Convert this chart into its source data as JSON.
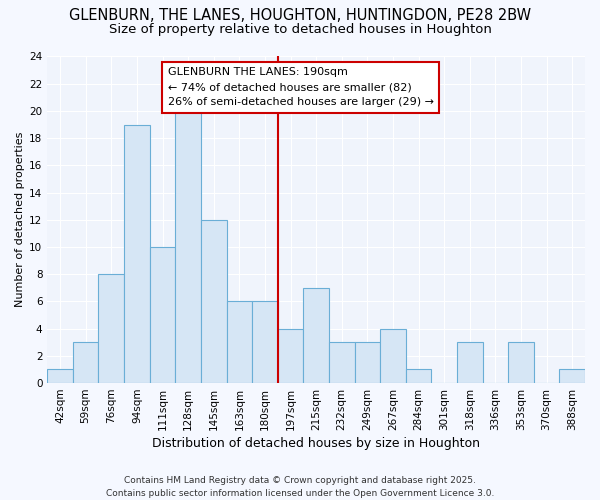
{
  "title1": "GLENBURN, THE LANES, HOUGHTON, HUNTINGDON, PE28 2BW",
  "title2": "Size of property relative to detached houses in Houghton",
  "xlabel": "Distribution of detached houses by size in Houghton",
  "ylabel": "Number of detached properties",
  "categories": [
    "42sqm",
    "59sqm",
    "76sqm",
    "94sqm",
    "111sqm",
    "128sqm",
    "145sqm",
    "163sqm",
    "180sqm",
    "197sqm",
    "215sqm",
    "232sqm",
    "249sqm",
    "267sqm",
    "284sqm",
    "301sqm",
    "318sqm",
    "336sqm",
    "353sqm",
    "370sqm",
    "388sqm"
  ],
  "values": [
    1,
    3,
    8,
    19,
    10,
    20,
    12,
    6,
    6,
    4,
    7,
    3,
    3,
    4,
    1,
    0,
    3,
    0,
    3,
    0,
    1
  ],
  "bar_color": "#d6e6f5",
  "bar_edge_color": "#6aaed6",
  "background_color": "#f5f8ff",
  "plot_bg_color": "#f0f4fc",
  "grid_color": "#ffffff",
  "annotation_line1": "GLENBURN THE LANES: 190sqm",
  "annotation_line2": "← 74% of detached houses are smaller (82)",
  "annotation_line3": "26% of semi-detached houses are larger (29) →",
  "annotation_box_color": "#ffffff",
  "annotation_box_edge_color": "#cc0000",
  "vline_color": "#cc0000",
  "vline_x": 8.5,
  "ylim": [
    0,
    24
  ],
  "yticks": [
    0,
    2,
    4,
    6,
    8,
    10,
    12,
    14,
    16,
    18,
    20,
    22,
    24
  ],
  "footer_text": "Contains HM Land Registry data © Crown copyright and database right 2025.\nContains public sector information licensed under the Open Government Licence 3.0.",
  "title1_fontsize": 10.5,
  "title2_fontsize": 9.5,
  "annotation_fontsize": 8,
  "ylabel_fontsize": 8,
  "xlabel_fontsize": 9,
  "footer_fontsize": 6.5,
  "tick_fontsize": 7.5
}
